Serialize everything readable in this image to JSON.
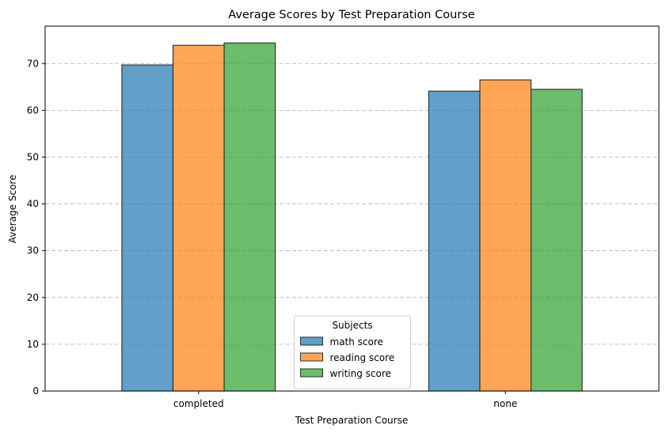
{
  "chart_data": {
    "type": "bar",
    "title": "Average Scores by Test Preparation Course",
    "xlabel": "Test Preparation Course",
    "ylabel": "Average Score",
    "categories": [
      "completed",
      "none"
    ],
    "series": [
      {
        "name": "math score",
        "values": [
          69.7,
          64.1
        ],
        "color": "#1f77b4"
      },
      {
        "name": "reading score",
        "values": [
          73.9,
          66.5
        ],
        "color": "#ff7f0e"
      },
      {
        "name": "writing score",
        "values": [
          74.4,
          64.5
        ],
        "color": "#2ca02c"
      }
    ],
    "ylim": [
      0,
      78
    ],
    "yticks": [
      0,
      10,
      20,
      30,
      40,
      50,
      60,
      70
    ],
    "grid": "y-dashed",
    "legend_title": "Subjects",
    "legend_position": "lower-center"
  }
}
